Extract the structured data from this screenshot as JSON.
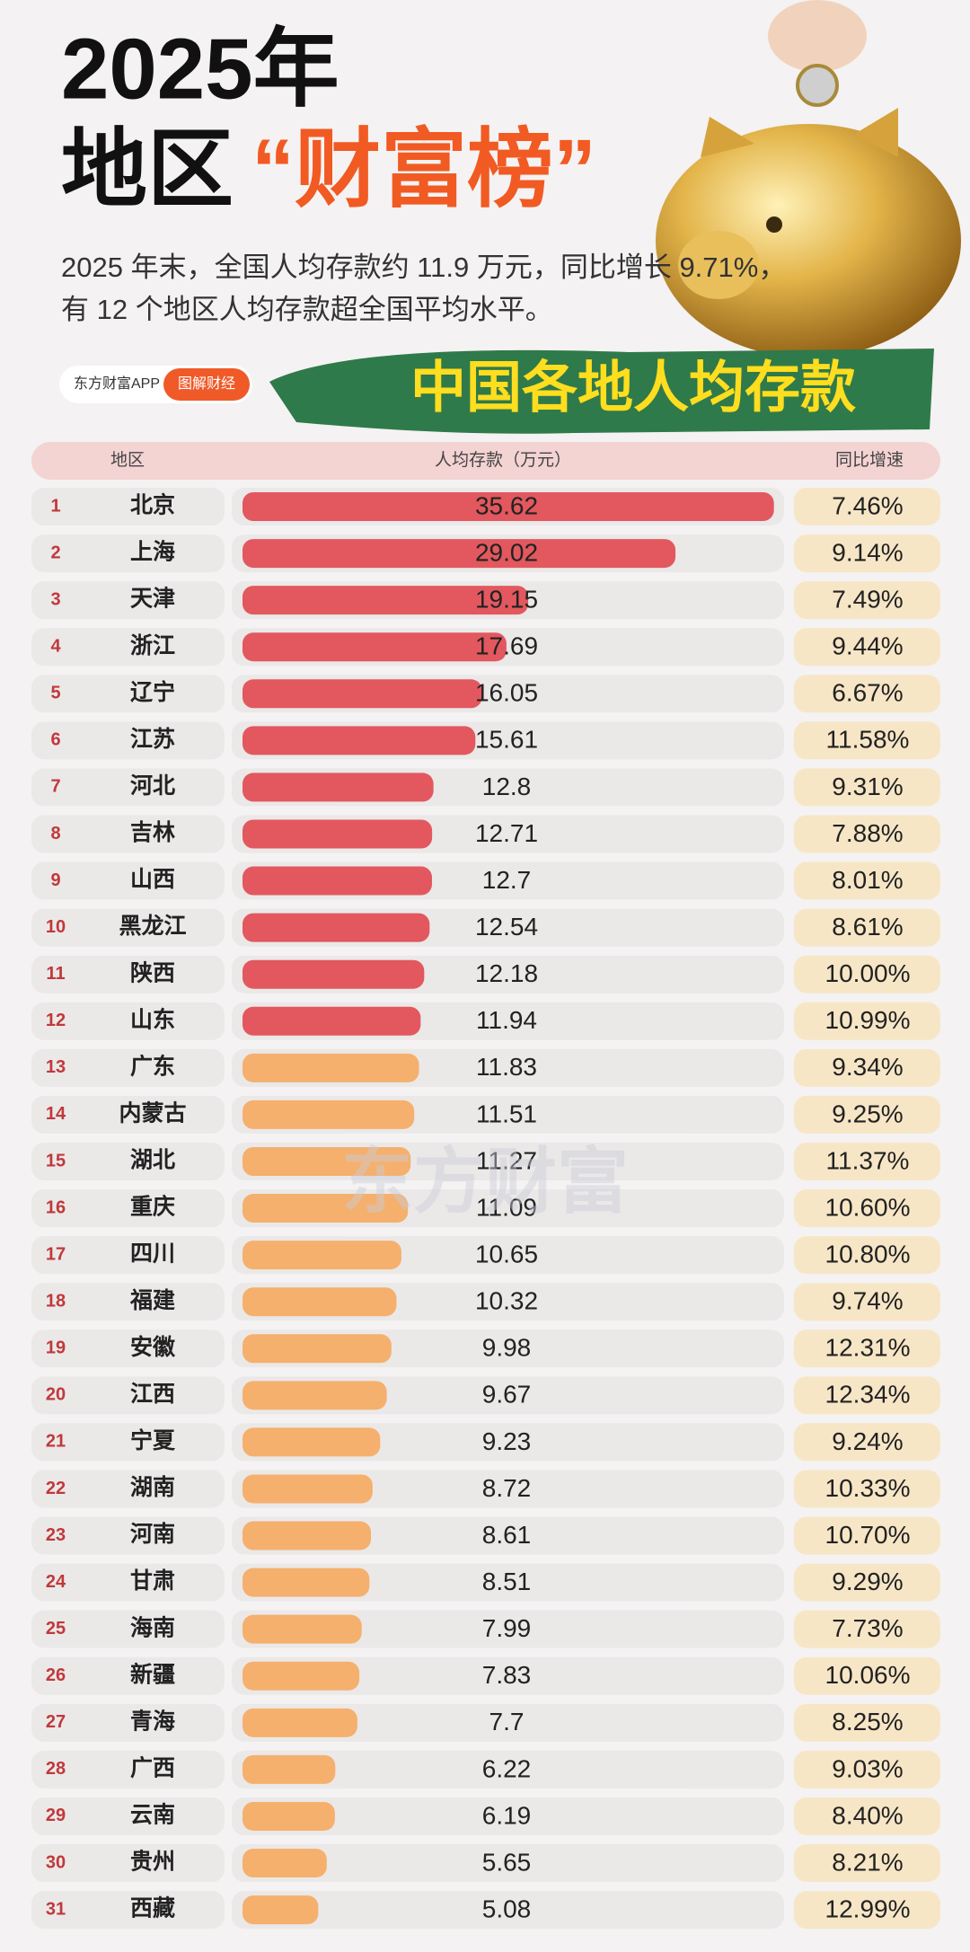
{
  "chart_data": {
    "type": "bar",
    "title": "2025年",
    "title_prefix": "地区",
    "title_highlight": "“财富榜”",
    "subtitle_lines": [
      "2025 年末，全国人均存款约 11.9 万元，同比增长 9.71%，",
      "有 12 个地区人均存款超全国平均水平。"
    ],
    "brand": "东方财富APP",
    "button": "图解财经",
    "chart_heading": "中国各地人均存款",
    "column_headers": [
      "地区",
      "人均存款（万元）",
      "同比增速"
    ],
    "watermark": "东方财富",
    "ranks": [
      1,
      2,
      3,
      4,
      5,
      6,
      7,
      8,
      9,
      10,
      11,
      12,
      13,
      14,
      15,
      16,
      17,
      18,
      19,
      20,
      21,
      22,
      23,
      24,
      25,
      26,
      27,
      28,
      29,
      30,
      31
    ],
    "categories": [
      "北京",
      "上海",
      "天津",
      "浙江",
      "辽宁",
      "江苏",
      "河北",
      "吉林",
      "山西",
      "黑龙江",
      "陕西",
      "山东",
      "广东",
      "内蒙古",
      "湖北",
      "重庆",
      "四川",
      "福建",
      "安徽",
      "江西",
      "宁夏",
      "湖南",
      "河南",
      "甘肃",
      "海南",
      "新疆",
      "青海",
      "广西",
      "云南",
      "贵州",
      "西藏"
    ],
    "values": [
      35.62,
      29.02,
      19.15,
      17.69,
      16.05,
      15.61,
      12.8,
      12.71,
      12.7,
      12.54,
      12.18,
      11.94,
      11.83,
      11.51,
      11.27,
      11.09,
      10.65,
      10.32,
      9.98,
      9.67,
      9.23,
      8.72,
      8.61,
      8.51,
      7.99,
      7.83,
      7.7,
      6.22,
      6.19,
      5.65,
      5.08
    ],
    "colors": [
      "#e2585e",
      "#e2585e",
      "#e2585e",
      "#e2585e",
      "#e2585e",
      "#e2585e",
      "#e2585e",
      "#e2585e",
      "#e2585e",
      "#e2585e",
      "#e2585e",
      "#e2585e",
      "#f5b06e",
      "#f5b06e",
      "#f5b06e",
      "#f5b06e",
      "#f5b06e",
      "#f5b06e",
      "#f5b06e",
      "#f5b06e",
      "#f5b06e",
      "#f5b06e",
      "#f5b06e",
      "#f5b06e",
      "#f5b06e",
      "#f5b06e",
      "#f5b06e",
      "#f5b06e",
      "#f5b06e",
      "#f5b06e",
      "#f5b06e"
    ],
    "xlim": [
      0,
      36
    ],
    "growth": {
      "values": [
        7.46,
        9.14,
        7.49,
        9.44,
        6.67,
        11.58,
        9.31,
        7.88,
        8.01,
        8.61,
        10.0,
        10.99,
        9.34,
        9.25,
        11.37,
        10.6,
        10.8,
        9.74,
        12.31,
        12.34,
        9.24,
        10.33,
        10.7,
        9.29,
        7.73,
        10.06,
        8.25,
        9.03,
        8.4,
        8.21,
        12.99
      ],
      "value_labels": [
        "7.46%",
        "9.14%",
        "7.49%",
        "9.44%",
        "6.67%",
        "11.58%",
        "9.31%",
        "7.88%",
        "8.01%",
        "8.61%",
        "10.00%",
        "10.99%",
        "9.34%",
        "9.25%",
        "11.37%",
        "10.60%",
        "10.80%",
        "9.74%",
        "12.31%",
        "12.34%",
        "9.24%",
        "10.33%",
        "10.70%",
        "9.29%",
        "7.73%",
        "10.06%",
        "8.25%",
        "9.03%",
        "8.40%",
        "8.21%",
        "12.99%"
      ]
    }
  }
}
